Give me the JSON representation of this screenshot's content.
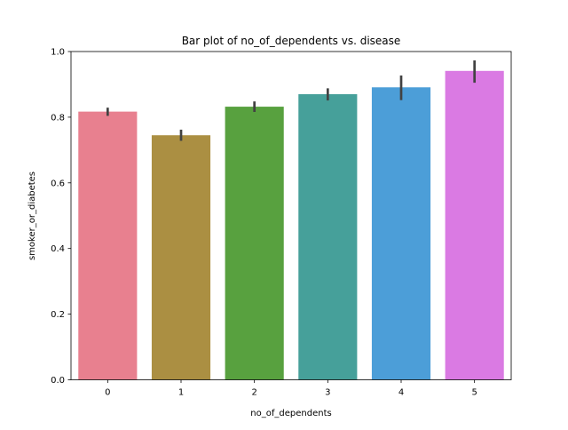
{
  "chart_data": {
    "type": "bar",
    "title": "Bar plot of no_of_dependents vs. disease",
    "xlabel": "no_of_dependents",
    "ylabel": "smoker_or_diabetes",
    "categories": [
      "0",
      "1",
      "2",
      "3",
      "4",
      "5"
    ],
    "values": [
      0.817,
      0.745,
      0.832,
      0.87,
      0.891,
      0.941
    ],
    "error_low": [
      0.804,
      0.728,
      0.816,
      0.851,
      0.852,
      0.905
    ],
    "error_high": [
      0.829,
      0.762,
      0.848,
      0.888,
      0.927,
      0.973
    ],
    "bar_colors": [
      "#e8808f",
      "#ab8f42",
      "#58a13f",
      "#46a09a",
      "#4c9ed8",
      "#da7ae3"
    ],
    "error_color": "#424242",
    "ylim": [
      0,
      1.0
    ],
    "yticks": [
      0.0,
      0.2,
      0.4,
      0.6,
      0.8,
      1.0
    ],
    "ytick_labels": [
      "0.0",
      "0.2",
      "0.4",
      "0.6",
      "0.8",
      "1.0"
    ],
    "grid": false,
    "legend": "none"
  }
}
